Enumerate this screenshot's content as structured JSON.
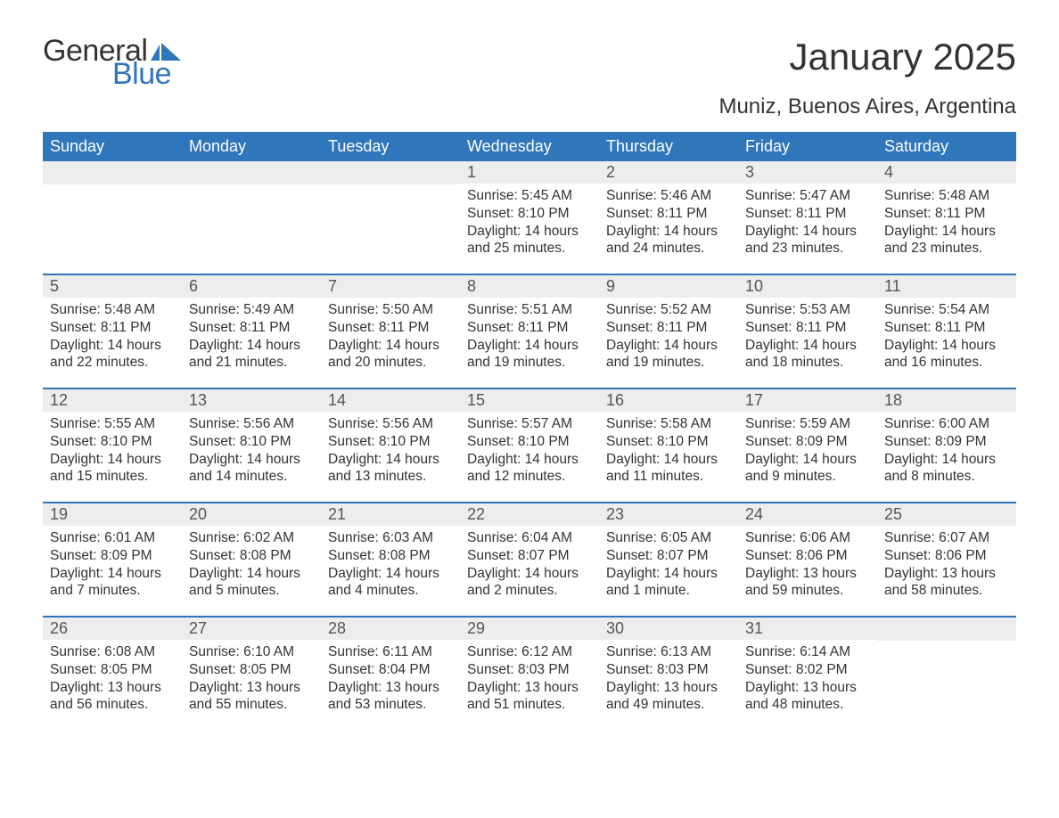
{
  "logo": {
    "text_general": "General",
    "text_blue": "Blue",
    "flag_color": "#2f76ba"
  },
  "title": "January 2025",
  "subtitle": "Muniz, Buenos Aires, Argentina",
  "colors": {
    "header_bg": "#2f76ba",
    "header_fg": "#ffffff",
    "daynum_bg": "#ededed",
    "week_divider": "#2f76ba",
    "body_text": "#333333"
  },
  "weekdays": [
    "Sunday",
    "Monday",
    "Tuesday",
    "Wednesday",
    "Thursday",
    "Friday",
    "Saturday"
  ],
  "weeks": [
    [
      {
        "day": "",
        "sunrise": "",
        "sunset": "",
        "daylight": ""
      },
      {
        "day": "",
        "sunrise": "",
        "sunset": "",
        "daylight": ""
      },
      {
        "day": "",
        "sunrise": "",
        "sunset": "",
        "daylight": ""
      },
      {
        "day": "1",
        "sunrise": "Sunrise: 5:45 AM",
        "sunset": "Sunset: 8:10 PM",
        "daylight": "Daylight: 14 hours and 25 minutes."
      },
      {
        "day": "2",
        "sunrise": "Sunrise: 5:46 AM",
        "sunset": "Sunset: 8:11 PM",
        "daylight": "Daylight: 14 hours and 24 minutes."
      },
      {
        "day": "3",
        "sunrise": "Sunrise: 5:47 AM",
        "sunset": "Sunset: 8:11 PM",
        "daylight": "Daylight: 14 hours and 23 minutes."
      },
      {
        "day": "4",
        "sunrise": "Sunrise: 5:48 AM",
        "sunset": "Sunset: 8:11 PM",
        "daylight": "Daylight: 14 hours and 23 minutes."
      }
    ],
    [
      {
        "day": "5",
        "sunrise": "Sunrise: 5:48 AM",
        "sunset": "Sunset: 8:11 PM",
        "daylight": "Daylight: 14 hours and 22 minutes."
      },
      {
        "day": "6",
        "sunrise": "Sunrise: 5:49 AM",
        "sunset": "Sunset: 8:11 PM",
        "daylight": "Daylight: 14 hours and 21 minutes."
      },
      {
        "day": "7",
        "sunrise": "Sunrise: 5:50 AM",
        "sunset": "Sunset: 8:11 PM",
        "daylight": "Daylight: 14 hours and 20 minutes."
      },
      {
        "day": "8",
        "sunrise": "Sunrise: 5:51 AM",
        "sunset": "Sunset: 8:11 PM",
        "daylight": "Daylight: 14 hours and 19 minutes."
      },
      {
        "day": "9",
        "sunrise": "Sunrise: 5:52 AM",
        "sunset": "Sunset: 8:11 PM",
        "daylight": "Daylight: 14 hours and 19 minutes."
      },
      {
        "day": "10",
        "sunrise": "Sunrise: 5:53 AM",
        "sunset": "Sunset: 8:11 PM",
        "daylight": "Daylight: 14 hours and 18 minutes."
      },
      {
        "day": "11",
        "sunrise": "Sunrise: 5:54 AM",
        "sunset": "Sunset: 8:11 PM",
        "daylight": "Daylight: 14 hours and 16 minutes."
      }
    ],
    [
      {
        "day": "12",
        "sunrise": "Sunrise: 5:55 AM",
        "sunset": "Sunset: 8:10 PM",
        "daylight": "Daylight: 14 hours and 15 minutes."
      },
      {
        "day": "13",
        "sunrise": "Sunrise: 5:56 AM",
        "sunset": "Sunset: 8:10 PM",
        "daylight": "Daylight: 14 hours and 14 minutes."
      },
      {
        "day": "14",
        "sunrise": "Sunrise: 5:56 AM",
        "sunset": "Sunset: 8:10 PM",
        "daylight": "Daylight: 14 hours and 13 minutes."
      },
      {
        "day": "15",
        "sunrise": "Sunrise: 5:57 AM",
        "sunset": "Sunset: 8:10 PM",
        "daylight": "Daylight: 14 hours and 12 minutes."
      },
      {
        "day": "16",
        "sunrise": "Sunrise: 5:58 AM",
        "sunset": "Sunset: 8:10 PM",
        "daylight": "Daylight: 14 hours and 11 minutes."
      },
      {
        "day": "17",
        "sunrise": "Sunrise: 5:59 AM",
        "sunset": "Sunset: 8:09 PM",
        "daylight": "Daylight: 14 hours and 9 minutes."
      },
      {
        "day": "18",
        "sunrise": "Sunrise: 6:00 AM",
        "sunset": "Sunset: 8:09 PM",
        "daylight": "Daylight: 14 hours and 8 minutes."
      }
    ],
    [
      {
        "day": "19",
        "sunrise": "Sunrise: 6:01 AM",
        "sunset": "Sunset: 8:09 PM",
        "daylight": "Daylight: 14 hours and 7 minutes."
      },
      {
        "day": "20",
        "sunrise": "Sunrise: 6:02 AM",
        "sunset": "Sunset: 8:08 PM",
        "daylight": "Daylight: 14 hours and 5 minutes."
      },
      {
        "day": "21",
        "sunrise": "Sunrise: 6:03 AM",
        "sunset": "Sunset: 8:08 PM",
        "daylight": "Daylight: 14 hours and 4 minutes."
      },
      {
        "day": "22",
        "sunrise": "Sunrise: 6:04 AM",
        "sunset": "Sunset: 8:07 PM",
        "daylight": "Daylight: 14 hours and 2 minutes."
      },
      {
        "day": "23",
        "sunrise": "Sunrise: 6:05 AM",
        "sunset": "Sunset: 8:07 PM",
        "daylight": "Daylight: 14 hours and 1 minute."
      },
      {
        "day": "24",
        "sunrise": "Sunrise: 6:06 AM",
        "sunset": "Sunset: 8:06 PM",
        "daylight": "Daylight: 13 hours and 59 minutes."
      },
      {
        "day": "25",
        "sunrise": "Sunrise: 6:07 AM",
        "sunset": "Sunset: 8:06 PM",
        "daylight": "Daylight: 13 hours and 58 minutes."
      }
    ],
    [
      {
        "day": "26",
        "sunrise": "Sunrise: 6:08 AM",
        "sunset": "Sunset: 8:05 PM",
        "daylight": "Daylight: 13 hours and 56 minutes."
      },
      {
        "day": "27",
        "sunrise": "Sunrise: 6:10 AM",
        "sunset": "Sunset: 8:05 PM",
        "daylight": "Daylight: 13 hours and 55 minutes."
      },
      {
        "day": "28",
        "sunrise": "Sunrise: 6:11 AM",
        "sunset": "Sunset: 8:04 PM",
        "daylight": "Daylight: 13 hours and 53 minutes."
      },
      {
        "day": "29",
        "sunrise": "Sunrise: 6:12 AM",
        "sunset": "Sunset: 8:03 PM",
        "daylight": "Daylight: 13 hours and 51 minutes."
      },
      {
        "day": "30",
        "sunrise": "Sunrise: 6:13 AM",
        "sunset": "Sunset: 8:03 PM",
        "daylight": "Daylight: 13 hours and 49 minutes."
      },
      {
        "day": "31",
        "sunrise": "Sunrise: 6:14 AM",
        "sunset": "Sunset: 8:02 PM",
        "daylight": "Daylight: 13 hours and 48 minutes."
      },
      {
        "day": "",
        "sunrise": "",
        "sunset": "",
        "daylight": ""
      }
    ]
  ]
}
